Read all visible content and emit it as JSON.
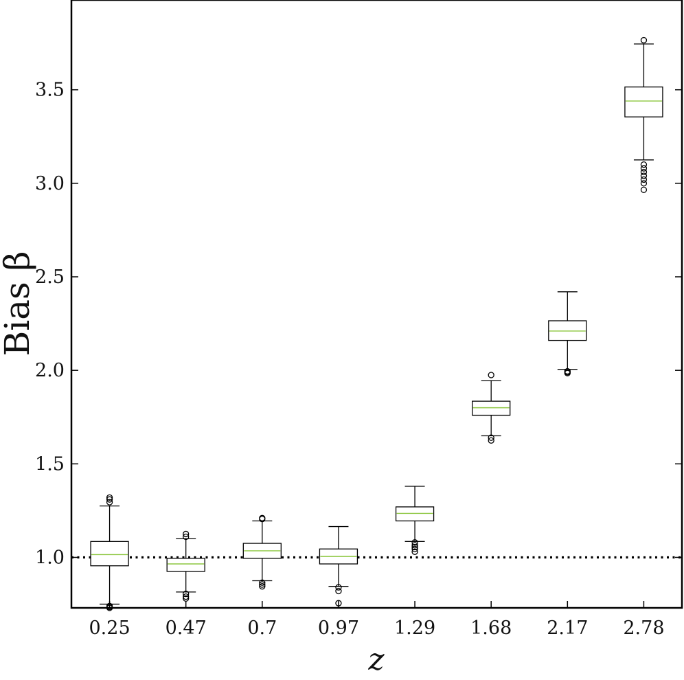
{
  "chart_data": {
    "type": "box",
    "xlabel": "z",
    "ylabel": "Bias β",
    "ylim": [
      0.73,
      3.98
    ],
    "yticks": [
      "1.0",
      "1.5",
      "2.0",
      "2.5",
      "3.0",
      "3.5"
    ],
    "reference_line": {
      "y": 1.0,
      "style": "dotted"
    },
    "grid": false,
    "categories": [
      "0.25",
      "0.47",
      "0.7",
      "0.97",
      "1.29",
      "1.68",
      "2.17",
      "2.78"
    ],
    "boxes": [
      {
        "z": "0.25",
        "whisker_low": 0.75,
        "q1": 0.955,
        "median": 1.015,
        "q3": 1.085,
        "whisker_high": 1.275,
        "outliers": [
          1.295,
          1.31,
          1.32,
          0.74,
          0.735,
          0.73
        ]
      },
      {
        "z": "0.47",
        "whisker_low": 0.815,
        "q1": 0.925,
        "median": 0.965,
        "q3": 0.995,
        "whisker_high": 1.1,
        "outliers": [
          1.11,
          1.125,
          0.805,
          0.79,
          0.78
        ]
      },
      {
        "z": "0.7",
        "whisker_low": 0.875,
        "q1": 0.995,
        "median": 1.035,
        "q3": 1.075,
        "whisker_high": 1.195,
        "outliers": [
          1.205,
          1.21,
          0.865,
          0.855,
          0.845
        ]
      },
      {
        "z": "0.97",
        "whisker_low": 0.845,
        "q1": 0.965,
        "median": 1.005,
        "q3": 1.045,
        "whisker_high": 1.165,
        "outliers": [
          0.84,
          0.82,
          0.755
        ]
      },
      {
        "z": "1.29",
        "whisker_low": 1.085,
        "q1": 1.195,
        "median": 1.235,
        "q3": 1.27,
        "whisker_high": 1.38,
        "outliers": [
          1.08,
          1.065,
          1.055,
          1.045,
          1.03
        ]
      },
      {
        "z": "1.68",
        "whisker_low": 1.65,
        "q1": 1.76,
        "median": 1.8,
        "q3": 1.835,
        "whisker_high": 1.945,
        "outliers": [
          1.975,
          1.64,
          1.625
        ]
      },
      {
        "z": "2.17",
        "whisker_low": 2.005,
        "q1": 2.16,
        "median": 2.21,
        "q3": 2.265,
        "whisker_high": 2.42,
        "outliers": [
          1.995,
          1.99,
          1.985
        ]
      },
      {
        "z": "2.78",
        "whisker_low": 3.125,
        "q1": 3.355,
        "median": 3.44,
        "q3": 3.515,
        "whisker_high": 3.745,
        "outliers": [
          3.765,
          3.1,
          3.08,
          3.06,
          3.04,
          3.02,
          3.0,
          2.965
        ]
      }
    ],
    "colors": {
      "box": "#000000",
      "median": "#8cc63f",
      "axis": "#000000"
    }
  }
}
